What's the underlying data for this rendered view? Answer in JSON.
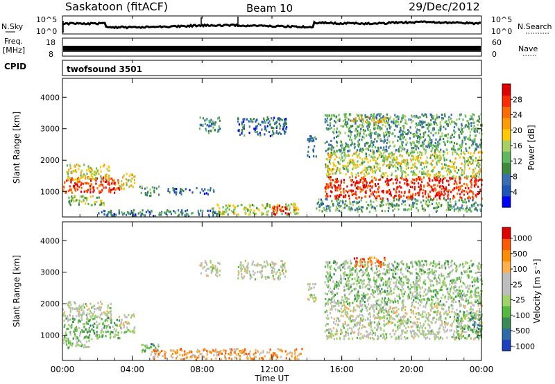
{
  "header": {
    "station": "Saskatoon (fitACF)",
    "beam": "Beam 10",
    "date": "29/Dec/2012"
  },
  "nsky_panel": {
    "left_label": "N.Sky",
    "right_label": "N.Search",
    "tick_top": "10^5",
    "tick_bottom": "10^0",
    "right_tick_top": "10^5",
    "right_tick_bottom": "10^0"
  },
  "freq_panel": {
    "left_label_line1": "Freq.",
    "left_label_line2": "[MHz]",
    "left_tick_top": "18",
    "left_tick_bottom": "8",
    "right_label": "Nave",
    "right_tick_top": "60",
    "right_tick_bottom": "0"
  },
  "cpid": {
    "label": "CPID",
    "value": "twofsound 3501"
  },
  "time_axis": {
    "label": "Time UT",
    "ticks": [
      "00:00",
      "04:00",
      "08:00",
      "12:00",
      "16:00",
      "20:00",
      "00:00"
    ]
  },
  "chart_data": [
    {
      "type": "heatmap",
      "name": "power",
      "xlabel": "Time UT",
      "ylabel": "Slant Range [km]",
      "xlim": [
        0,
        24
      ],
      "ylim": [
        200,
        4600
      ],
      "y_ticks": [
        "1000",
        "2000",
        "3000",
        "4000"
      ],
      "colorbar": {
        "label": "Power [dB]",
        "ticks": [
          "4",
          "8",
          "12",
          "16",
          "20",
          "24",
          "28"
        ],
        "colors": [
          "#0000ff",
          "#1d56b8",
          "#3a6eb3",
          "#3c8a3c",
          "#5fb85f",
          "#a8d060",
          "#ffc800",
          "#ff9a00",
          "#ff6a00",
          "#ff2a00",
          "#e00000"
        ]
      },
      "regions": [
        {
          "t0": 0.0,
          "t1": 3.3,
          "r0": 1000,
          "r1": 1500,
          "level": 0.85
        },
        {
          "t0": 0.2,
          "t1": 2.7,
          "r0": 1400,
          "r1": 1900,
          "level": 0.55
        },
        {
          "t0": 0.3,
          "t1": 2.4,
          "r0": 600,
          "r1": 900,
          "level": 0.45
        },
        {
          "t0": 3.2,
          "t1": 4.1,
          "r0": 1100,
          "r1": 1600,
          "level": 0.55
        },
        {
          "t0": 4.4,
          "t1": 5.5,
          "r0": 900,
          "r1": 1200,
          "level": 0.35
        },
        {
          "t0": 6.0,
          "t1": 8.8,
          "r0": 950,
          "r1": 1150,
          "level": 0.2
        },
        {
          "t0": 7.8,
          "t1": 9.0,
          "r0": 2900,
          "r1": 3400,
          "level": 0.3
        },
        {
          "t0": 10.0,
          "t1": 12.8,
          "r0": 2800,
          "r1": 3400,
          "level": 0.2
        },
        {
          "t0": 8.5,
          "t1": 13.5,
          "r0": 300,
          "r1": 650,
          "level": 0.5
        },
        {
          "t0": 12.0,
          "t1": 13.0,
          "r0": 300,
          "r1": 600,
          "level": 0.9
        },
        {
          "t0": 2.0,
          "t1": 9.0,
          "r0": 250,
          "r1": 450,
          "level": 0.25
        },
        {
          "t0": 14.0,
          "t1": 14.5,
          "r0": 2100,
          "r1": 2800,
          "level": 0.25
        },
        {
          "t0": 15.0,
          "t1": 24.0,
          "r0": 800,
          "r1": 1500,
          "level": 0.9
        },
        {
          "t0": 15.0,
          "t1": 24.0,
          "r0": 1500,
          "r1": 2300,
          "level": 0.5
        },
        {
          "t0": 15.0,
          "t1": 24.0,
          "r0": 2300,
          "r1": 3500,
          "level": 0.35
        },
        {
          "t0": 16.5,
          "t1": 18.5,
          "r0": 3200,
          "r1": 3400,
          "level": 0.6
        },
        {
          "t0": 14.5,
          "t1": 24.0,
          "r0": 400,
          "r1": 800,
          "level": 0.35
        }
      ]
    },
    {
      "type": "heatmap",
      "name": "velocity",
      "xlabel": "Time UT",
      "ylabel": "Slant Range [km]",
      "xlim": [
        0,
        24
      ],
      "ylim": [
        200,
        4600
      ],
      "y_ticks": [
        "1000",
        "2000",
        "3000",
        "4000"
      ],
      "colorbar": {
        "label": "Velocity [m s⁻¹]",
        "ticks": [
          "1000",
          "500",
          "100",
          "25",
          "-25",
          "-100",
          "-500",
          "-1000"
        ],
        "colors": [
          "#1a3fc0",
          "#2e6aa8",
          "#3a8a55",
          "#55b840",
          "#9fd36a",
          "#bdbdbd",
          "#bdbdbd",
          "#ffb04a",
          "#ff8c00",
          "#ff5a00",
          "#e00000"
        ]
      },
      "regions": [
        {
          "t0": 0.0,
          "t1": 3.3,
          "r0": 900,
          "r1": 1600,
          "level": 0.35
        },
        {
          "t0": 0.0,
          "t1": 2.8,
          "r0": 1600,
          "r1": 2100,
          "level": 0.5
        },
        {
          "t0": 0.0,
          "t1": 1.5,
          "r0": 600,
          "r1": 900,
          "level": 0.42
        },
        {
          "t0": 3.2,
          "t1": 4.1,
          "r0": 1100,
          "r1": 1700,
          "level": 0.5
        },
        {
          "t0": 4.4,
          "t1": 5.5,
          "r0": 500,
          "r1": 750,
          "level": 0.35
        },
        {
          "t0": 7.8,
          "t1": 9.0,
          "r0": 2900,
          "r1": 3400,
          "level": 0.5
        },
        {
          "t0": 10.0,
          "t1": 12.8,
          "r0": 2800,
          "r1": 3400,
          "level": 0.5
        },
        {
          "t0": 5.0,
          "t1": 13.8,
          "r0": 250,
          "r1": 600,
          "level": 0.72
        },
        {
          "t0": 14.0,
          "t1": 14.5,
          "r0": 2100,
          "r1": 2700,
          "level": 0.5
        },
        {
          "t0": 15.0,
          "t1": 24.0,
          "r0": 900,
          "r1": 2000,
          "level": 0.5
        },
        {
          "t0": 15.0,
          "t1": 24.0,
          "r0": 2000,
          "r1": 3400,
          "level": 0.4
        },
        {
          "t0": 16.5,
          "t1": 18.5,
          "r0": 3200,
          "r1": 3500,
          "level": 0.85
        },
        {
          "t0": 22.5,
          "t1": 24.0,
          "r0": 900,
          "r1": 1800,
          "level": 0.3
        }
      ]
    }
  ]
}
